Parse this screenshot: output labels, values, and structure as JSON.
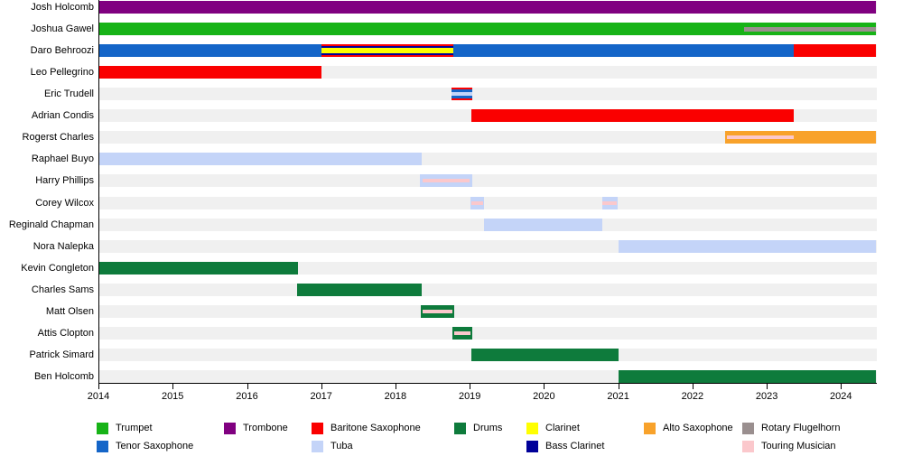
{
  "chart_data": {
    "type": "gantt-timeline",
    "title": "",
    "axis": {
      "start": 2014,
      "end": 2024.47,
      "ticks": [
        2014,
        2015,
        2016,
        2017,
        2018,
        2019,
        2020,
        2021,
        2022,
        2023,
        2024
      ]
    },
    "colors": {
      "trumpet": "#17B317",
      "trombone": "#800080",
      "baritone_saxophone": "#FA0000",
      "drums": "#0E7B3C",
      "clarinet": "#FFFF00",
      "alto_saxophone": "#F8A22B",
      "rotary_flugelhorn": "#9A8F8F",
      "tenor_saxophone": "#1465C8",
      "tuba": "#C4D4F8",
      "bass_clarinet": "#000099",
      "touring_musician": "#FBC8CC",
      "row_track": "#F0F0F0",
      "axis": "#000000"
    },
    "legend": [
      {
        "label": "Trumpet",
        "key": "trumpet",
        "row": 1,
        "col": 1
      },
      {
        "label": "Trombone",
        "key": "trombone",
        "row": 1,
        "col": 2
      },
      {
        "label": "Baritone Saxophone",
        "key": "baritone_saxophone",
        "row": 1,
        "col": 3
      },
      {
        "label": "Drums",
        "key": "drums",
        "row": 1,
        "col": 4
      },
      {
        "label": "Clarinet",
        "key": "clarinet",
        "row": 1,
        "col": 5
      },
      {
        "label": "Alto Saxophone",
        "key": "alto_saxophone",
        "row": 1,
        "col": 6
      },
      {
        "label": "Rotary Flugelhorn",
        "key": "rotary_flugelhorn",
        "row": 1,
        "col": 7
      },
      {
        "label": "Tenor Saxophone",
        "key": "tenor_saxophone",
        "row": 2,
        "col": 1
      },
      {
        "label": "Tuba",
        "key": "tuba",
        "row": 2,
        "col": 3
      },
      {
        "label": "Bass Clarinet",
        "key": "bass_clarinet",
        "row": 2,
        "col": 5
      },
      {
        "label": "Touring Musician",
        "key": "touring_musician",
        "row": 2,
        "col": 7
      }
    ],
    "members": [
      {
        "name": "Josh Holcomb",
        "bars": [
          {
            "start": 2014,
            "end": 2024.47,
            "layers": [
              "trombone"
            ],
            "fractions": [
              1
            ]
          }
        ]
      },
      {
        "name": "Joshua Gawel",
        "bars": [
          {
            "start": 2014,
            "end": 2024.47,
            "layers": [
              "trumpet"
            ],
            "fractions": [
              1
            ]
          }
        ],
        "stripes": [
          {
            "start": 2022.7,
            "end": 2024.47,
            "key": "rotary_flugelhorn",
            "h": 5
          }
        ]
      },
      {
        "name": "Daro Behroozi",
        "bars": [
          {
            "start": 2014,
            "end": 2023.36,
            "layers": [
              "tenor_saxophone"
            ],
            "fractions": [
              1
            ]
          },
          {
            "start": 2023.36,
            "end": 2024.47,
            "layers": [
              "baritone_saxophone"
            ],
            "fractions": [
              1
            ]
          },
          {
            "start": 2017,
            "end": 2018.78,
            "layers": [
              "baritone_saxophone",
              "bass_clarinet",
              "clarinet",
              "bass_clarinet",
              "baritone_saxophone"
            ],
            "fractions": [
              0.11,
              0.18,
              0.42,
              0.18,
              0.11
            ]
          }
        ]
      },
      {
        "name": "Leo Pellegrino",
        "bars": [
          {
            "start": 2014,
            "end": 2017,
            "layers": [
              "baritone_saxophone"
            ],
            "fractions": [
              1
            ]
          }
        ]
      },
      {
        "name": "Eric Trudell",
        "bars": [
          {
            "start": 2018.75,
            "end": 2019.03,
            "layers": [
              "baritone_saxophone",
              "tenor_saxophone",
              "tuba",
              "tenor_saxophone",
              "baritone_saxophone"
            ],
            "fractions": [
              0.14,
              0.21,
              0.3,
              0.21,
              0.14
            ]
          }
        ]
      },
      {
        "name": "Adrian Condis",
        "bars": [
          {
            "start": 2019.02,
            "end": 2023.37,
            "layers": [
              "baritone_saxophone"
            ],
            "fractions": [
              1
            ]
          }
        ]
      },
      {
        "name": "Rogerst Charles",
        "bars": [
          {
            "start": 2022.44,
            "end": 2024.47,
            "layers": [
              "alto_saxophone"
            ],
            "fractions": [
              1
            ]
          }
        ],
        "stripes": [
          {
            "start": 2022.46,
            "end": 2023.37,
            "key": "touring_musician",
            "h": 4
          }
        ]
      },
      {
        "name": "Raphael Buyo",
        "bars": [
          {
            "start": 2014,
            "end": 2018.35,
            "layers": [
              "tuba"
            ],
            "fractions": [
              1
            ]
          }
        ]
      },
      {
        "name": "Harry Phillips",
        "bars": [
          {
            "start": 2018.33,
            "end": 2019.03,
            "layers": [
              "tuba"
            ],
            "fractions": [
              1
            ]
          }
        ],
        "stripes": [
          {
            "start": 2018.36,
            "end": 2019.0,
            "key": "touring_musician",
            "h": 4
          }
        ]
      },
      {
        "name": "Corey Wilcox",
        "bars": [
          {
            "start": 2019.01,
            "end": 2019.19,
            "layers": [
              "tuba"
            ],
            "fractions": [
              1
            ]
          },
          {
            "start": 2020.78,
            "end": 2020.99,
            "layers": [
              "tuba"
            ],
            "fractions": [
              1
            ]
          }
        ],
        "stripes": [
          {
            "start": 2019.02,
            "end": 2019.18,
            "key": "touring_musician",
            "h": 4
          },
          {
            "start": 2020.79,
            "end": 2020.98,
            "key": "touring_musician",
            "h": 4
          }
        ]
      },
      {
        "name": "Reginald Chapman",
        "bars": [
          {
            "start": 2019.19,
            "end": 2020.78,
            "layers": [
              "tuba"
            ],
            "fractions": [
              1
            ]
          }
        ]
      },
      {
        "name": "Nora Nalepka",
        "bars": [
          {
            "start": 2021,
            "end": 2024.47,
            "layers": [
              "tuba"
            ],
            "fractions": [
              1
            ]
          }
        ]
      },
      {
        "name": "Kevin Congleton",
        "bars": [
          {
            "start": 2014,
            "end": 2016.69,
            "layers": [
              "drums"
            ],
            "fractions": [
              1
            ]
          }
        ]
      },
      {
        "name": "Charles Sams",
        "bars": [
          {
            "start": 2016.68,
            "end": 2018.35,
            "layers": [
              "drums"
            ],
            "fractions": [
              1
            ]
          }
        ]
      },
      {
        "name": "Matt Olsen",
        "bars": [
          {
            "start": 2018.34,
            "end": 2018.79,
            "layers": [
              "drums"
            ],
            "fractions": [
              1
            ]
          }
        ],
        "stripes": [
          {
            "start": 2018.36,
            "end": 2018.77,
            "key": "touring_musician",
            "h": 4
          }
        ]
      },
      {
        "name": "Attis Clopton",
        "bars": [
          {
            "start": 2018.77,
            "end": 2019.03,
            "layers": [
              "drums"
            ],
            "fractions": [
              1
            ]
          }
        ],
        "stripes": [
          {
            "start": 2018.79,
            "end": 2019.01,
            "key": "touring_musician",
            "h": 4
          }
        ]
      },
      {
        "name": "Patrick Simard",
        "bars": [
          {
            "start": 2019.02,
            "end": 2021,
            "layers": [
              "drums"
            ],
            "fractions": [
              1
            ]
          }
        ]
      },
      {
        "name": "Ben Holcomb",
        "bars": [
          {
            "start": 2021,
            "end": 2024.47,
            "layers": [
              "drums"
            ],
            "fractions": [
              1
            ]
          }
        ]
      }
    ]
  }
}
